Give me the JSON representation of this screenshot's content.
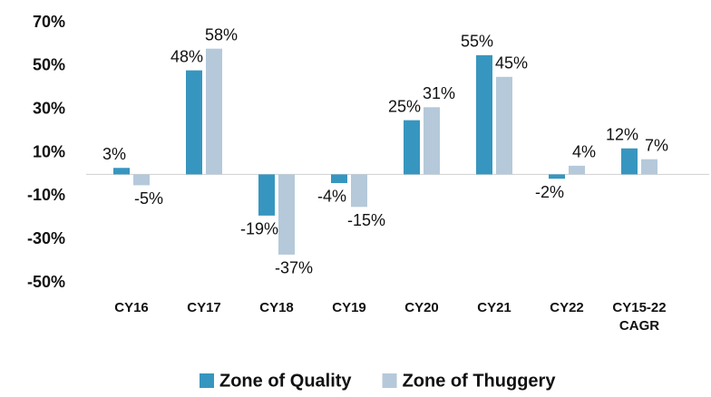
{
  "chart_data": {
    "type": "bar",
    "categories": [
      "CY16",
      "CY17",
      "CY18",
      "CY19",
      "CY20",
      "CY21",
      "CY22",
      "CY15-22 CAGR"
    ],
    "series": [
      {
        "name": "Zone of Quality",
        "color": "#3796bf",
        "values": [
          3,
          48,
          -19,
          -4,
          25,
          55,
          -2,
          12
        ],
        "value_labels": [
          "3%",
          "48%",
          "-19%",
          "-4%",
          "25%",
          "55%",
          "-2%",
          "12%"
        ]
      },
      {
        "name": "Zone of Thuggery",
        "color": "#b5c9da",
        "values": [
          -5,
          58,
          -37,
          -15,
          31,
          45,
          4,
          7
        ],
        "value_labels": [
          "-5%",
          "58%",
          "-37%",
          "-15%",
          "31%",
          "45%",
          "4%",
          "7%"
        ]
      }
    ],
    "ylim": [
      -50,
      70
    ],
    "yticks": [
      {
        "value": 70,
        "label": "70%"
      },
      {
        "value": 50,
        "label": "50%"
      },
      {
        "value": 30,
        "label": "30%"
      },
      {
        "value": 10,
        "label": "10%"
      },
      {
        "value": -10,
        "label": "-10%"
      },
      {
        "value": -30,
        "label": "-30%"
      },
      {
        "value": -50,
        "label": "-50%"
      }
    ],
    "grid": false,
    "legend": "bottom"
  }
}
